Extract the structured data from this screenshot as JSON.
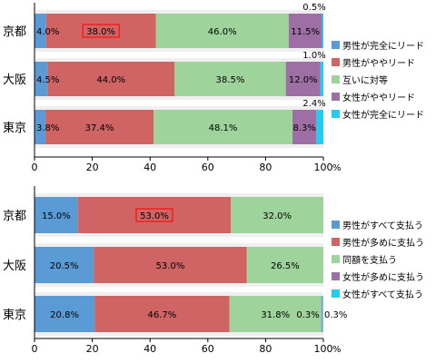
{
  "chart_data": [
    {
      "type": "bar",
      "orientation": "horizontal",
      "stacked": true,
      "categories": [
        "京都",
        "大阪",
        "東京"
      ],
      "series": [
        {
          "name": "男性が完全にリード",
          "values": [
            4.0,
            4.5,
            3.8
          ],
          "color": "#5b9bd5"
        },
        {
          "name": "男性がややリード",
          "values": [
            38.0,
            44.0,
            37.4
          ],
          "color": "#d06363"
        },
        {
          "name": "互いに対等",
          "values": [
            46.0,
            38.5,
            48.1
          ],
          "color": "#9fd39c"
        },
        {
          "name": "女性がややリード",
          "values": [
            11.5,
            12.0,
            8.3
          ],
          "color": "#9e6fa5"
        },
        {
          "name": "女性が完全にリード",
          "values": [
            0.5,
            1.0,
            2.4
          ],
          "color": "#22ccee"
        }
      ],
      "labels": [
        [
          "4.0%",
          "38.0%",
          "46.0%",
          "11.5%",
          "0.5%"
        ],
        [
          "4.5%",
          "44.0%",
          "38.5%",
          "12.0%",
          "1.0%"
        ],
        [
          "3.8%",
          "37.4%",
          "48.1%",
          "8.3%",
          "2.4%"
        ]
      ],
      "highlighted": [
        {
          "category": 0,
          "series": 1
        }
      ],
      "xlim": [
        0,
        100
      ],
      "xticks": [
        "0",
        "20",
        "40",
        "60",
        "80",
        "100"
      ],
      "unit": "%",
      "legend_position": "right"
    },
    {
      "type": "bar",
      "orientation": "horizontal",
      "stacked": true,
      "categories": [
        "京都",
        "大阪",
        "東京"
      ],
      "series": [
        {
          "name": "男性がすべて支払う",
          "values": [
            15.0,
            20.5,
            20.8
          ],
          "color": "#5b9bd5"
        },
        {
          "name": "男性が多めに支払う",
          "values": [
            53.0,
            53.0,
            46.7
          ],
          "color": "#d06363"
        },
        {
          "name": "同額を支払う",
          "values": [
            32.0,
            26.5,
            31.8
          ],
          "color": "#9fd39c"
        },
        {
          "name": "女性が多めに支払う",
          "values": [
            0,
            0,
            0.3
          ],
          "color": "#9e6fa5"
        },
        {
          "name": "女性がすべて支払う",
          "values": [
            0,
            0,
            0.3
          ],
          "color": "#22ccee"
        }
      ],
      "labels": [
        [
          "15.0%",
          "53.0%",
          "32.0%",
          "",
          ""
        ],
        [
          "20.5%",
          "53.0%",
          "26.5%",
          "",
          ""
        ],
        [
          "20.8%",
          "46.7%",
          "31.8%",
          "0.3%",
          "0.3%"
        ]
      ],
      "highlighted": [
        {
          "category": 0,
          "series": 1
        }
      ],
      "xlim": [
        0,
        100
      ],
      "xticks": [
        "0",
        "20",
        "40",
        "60",
        "80",
        "100"
      ],
      "unit": "%",
      "legend_position": "right"
    }
  ]
}
